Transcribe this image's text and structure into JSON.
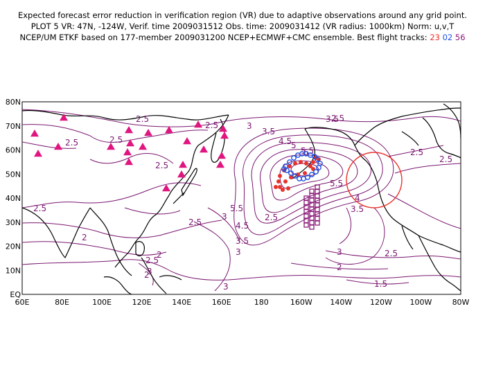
{
  "header": {
    "line1": "Expected forecast error reduction in verification region (VR) due to adaptive observations around any grid point.",
    "line2": "PLOT 5 VR: 47N, -124W, Verif. time 2009031512 Obs. time: 2009031412 (VR radius: 1000km) Norm: u,v,T",
    "line3": "NCEP/UM ETKF based on 177-member 2009031200 NCEP+ECMWF+CMC ensemble. Best flight tracks: ",
    "tracks": [
      "23",
      "02",
      "56"
    ]
  },
  "colors": {
    "contour": "#7a1670",
    "coast": "#000000",
    "triangle": "#e0157f",
    "track_23": "#e8322b",
    "track_02": "#2050e0",
    "track_56": "#8b1a78",
    "vr_circle": "#e8322b"
  },
  "map": {
    "lon_labels": [
      "60E",
      "80E",
      "100E",
      "120E",
      "140E",
      "160E",
      "180",
      "160W",
      "140W",
      "120W",
      "100W",
      "80W"
    ],
    "lat_labels": [
      "EQ",
      "10N",
      "20N",
      "30N",
      "40N",
      "50N",
      "60N",
      "70N",
      "80N"
    ],
    "contour_labels": [
      "2.5",
      "2.5",
      "2.5",
      "2.5",
      "2.5",
      "2.5",
      "2.5",
      "2.5",
      "2.5",
      "2.5",
      "2.5",
      "2.5",
      "2.5",
      "2",
      "2",
      "2",
      "2",
      "3",
      "3",
      "3",
      "3",
      "3",
      "3",
      "3.5",
      "3.5",
      "3.5",
      "3.5",
      "4",
      "4.5",
      "4.5",
      "5",
      "5.5",
      "5.5",
      "5.5",
      "6",
      "1.5"
    ],
    "vr_center": {
      "lat": 47,
      "lon": -124
    }
  }
}
